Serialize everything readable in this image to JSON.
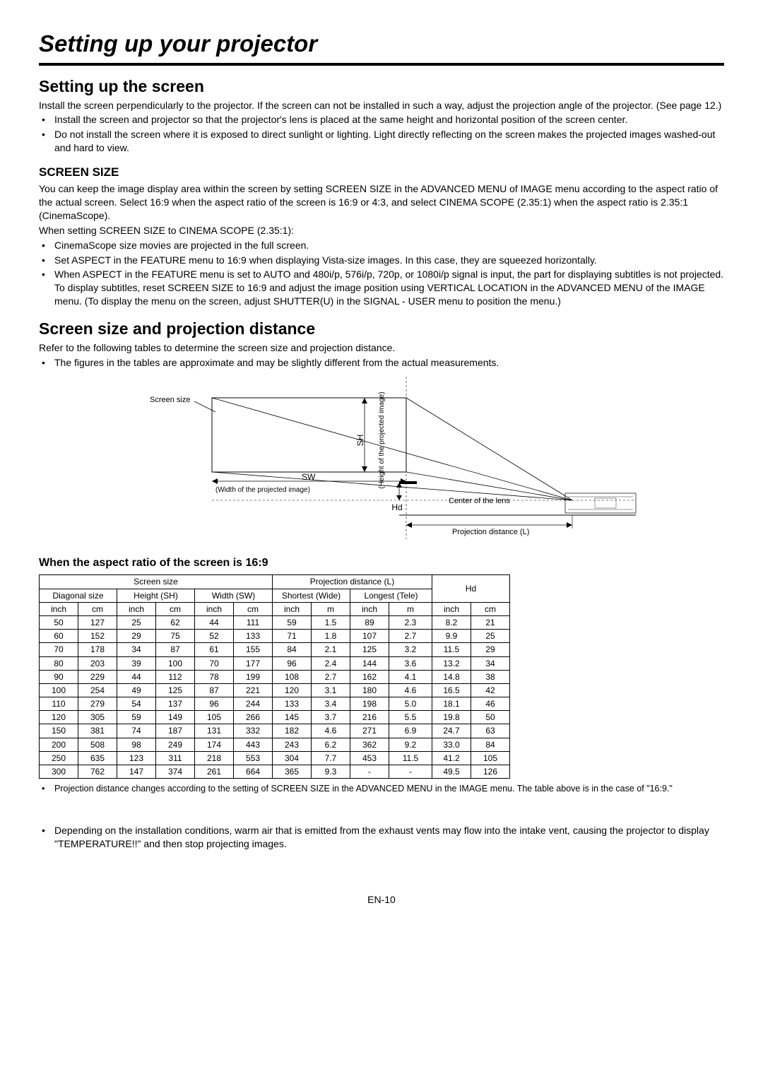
{
  "title": "Setting up your projector",
  "section1": {
    "heading": "Setting up the screen",
    "intro": "Install the screen perpendicularly to the projector. If the screen can not be installed in such a way, adjust the projection angle of the projector. (See page 12.)",
    "bullets": [
      "Install the screen and projector so that the projector's lens is placed at the same height and horizontal position of the screen center.",
      "Do not install the screen where it is exposed to direct sunlight or lighting. Light directly reflecting on the screen makes the projected images washed-out and hard to view."
    ]
  },
  "section2": {
    "heading": "SCREEN SIZE",
    "p1": "You can keep the image display area within the screen by setting SCREEN SIZE in the ADVANCED MENU of IMAGE menu according to the aspect ratio of the actual screen. Select 16:9 when the aspect ratio of the screen is 16:9 or 4:3, and select CINEMA SCOPE (2.35:1) when the aspect ratio is 2.35:1 (CinemaScope).",
    "p2": "When setting SCREEN SIZE to CINEMA SCOPE (2.35:1):",
    "bullets": [
      "CinemaScope size movies are projected in the full screen.",
      "Set ASPECT in the FEATURE menu to 16:9 when displaying Vista-size images. In this case, they are squeezed horizontally.",
      "When ASPECT in the FEATURE menu is set to AUTO and 480i/p, 576i/p, 720p, or 1080i/p signal is input, the part for displaying subtitles is not projected. To display subtitles, reset SCREEN SIZE to 16:9 and adjust the image position using VERTICAL LOCATION in the ADVANCED MENU of the IMAGE menu. (To display the menu on the screen, adjust SHUTTER(U) in the SIGNAL - USER menu to position the menu.)"
    ]
  },
  "section3": {
    "heading": "Screen size and projection distance",
    "p1": "Refer to the following tables to determine the screen size and projection distance.",
    "bullets": [
      "The figures in the tables are approximate and may be slightly different from the actual measurements."
    ]
  },
  "diagram": {
    "screenSize": "Screen size",
    "sw": "SW",
    "swCaption": "(Width of the projected image)",
    "sh": "SH",
    "shCaption": "(Height of the projected image)",
    "hd": "Hd",
    "centerLens": "Center of the lens",
    "projDist": "Projection distance (L)"
  },
  "tableSection": {
    "heading": "When the aspect ratio of the screen is 16:9",
    "group1": "Screen size",
    "group2": "Projection distance (L)",
    "group3": "Hd",
    "sub1": "Diagonal size",
    "sub2": "Height (SH)",
    "sub3": "Width (SW)",
    "sub4": "Shortest (Wide)",
    "sub5": "Longest (Tele)",
    "units": [
      "inch",
      "cm",
      "inch",
      "cm",
      "inch",
      "cm",
      "inch",
      "m",
      "inch",
      "m",
      "inch",
      "cm"
    ],
    "rows": [
      [
        "50",
        "127",
        "25",
        "62",
        "44",
        "111",
        "59",
        "1.5",
        "89",
        "2.3",
        "8.2",
        "21"
      ],
      [
        "60",
        "152",
        "29",
        "75",
        "52",
        "133",
        "71",
        "1.8",
        "107",
        "2.7",
        "9.9",
        "25"
      ],
      [
        "70",
        "178",
        "34",
        "87",
        "61",
        "155",
        "84",
        "2.1",
        "125",
        "3.2",
        "11.5",
        "29"
      ],
      [
        "80",
        "203",
        "39",
        "100",
        "70",
        "177",
        "96",
        "2.4",
        "144",
        "3.6",
        "13.2",
        "34"
      ],
      [
        "90",
        "229",
        "44",
        "112",
        "78",
        "199",
        "108",
        "2.7",
        "162",
        "4.1",
        "14.8",
        "38"
      ],
      [
        "100",
        "254",
        "49",
        "125",
        "87",
        "221",
        "120",
        "3.1",
        "180",
        "4.6",
        "16.5",
        "42"
      ],
      [
        "110",
        "279",
        "54",
        "137",
        "96",
        "244",
        "133",
        "3.4",
        "198",
        "5.0",
        "18.1",
        "46"
      ],
      [
        "120",
        "305",
        "59",
        "149",
        "105",
        "266",
        "145",
        "3.7",
        "216",
        "5.5",
        "19.8",
        "50"
      ],
      [
        "150",
        "381",
        "74",
        "187",
        "131",
        "332",
        "182",
        "4.6",
        "271",
        "6.9",
        "24.7",
        "63"
      ],
      [
        "200",
        "508",
        "98",
        "249",
        "174",
        "443",
        "243",
        "6.2",
        "362",
        "9.2",
        "33.0",
        "84"
      ],
      [
        "250",
        "635",
        "123",
        "311",
        "218",
        "553",
        "304",
        "7.7",
        "453",
        "11.5",
        "41.2",
        "105"
      ],
      [
        "300",
        "762",
        "147",
        "374",
        "261",
        "664",
        "365",
        "9.3",
        "-",
        "-",
        "49.5",
        "126"
      ]
    ]
  },
  "note1": "Projection distance changes according to the setting of SCREEN SIZE in the ADVANCED MENU in the IMAGE menu. The table above is in the case of \"16:9.\"",
  "note2": "Depending on the installation conditions, warm air that is emitted from the exhaust vents may flow into the intake vent, causing the projector to display \"TEMPERATURE!!\" and then stop projecting images.",
  "pageNum": "EN-10"
}
